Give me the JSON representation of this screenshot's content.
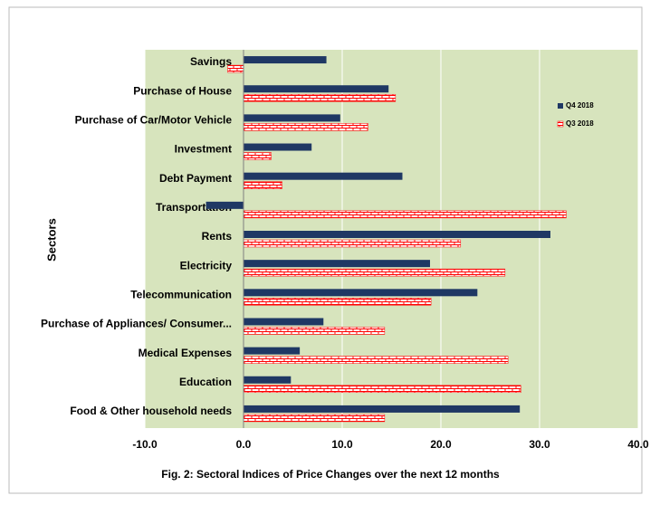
{
  "chart_data": {
    "type": "bar",
    "orientation": "horizontal",
    "title": "Fig. 2: Sectoral  Indices of Price Changes over the next 12 months",
    "y_label": "Sectors",
    "categories": [
      "Savings",
      "Purchase of House",
      "Purchase of Car/Motor Vehicle",
      "Investment",
      "Debt Payment",
      "Transportation",
      "Rents",
      "Electricity",
      "Telecommunication",
      "Purchase of Appliances/ Consumer...",
      "Medical Expenses",
      "Education",
      "Food & Other household needs"
    ],
    "series": [
      {
        "name": "Q4 2018",
        "color": "#1f3864",
        "values": [
          8.4,
          14.7,
          9.8,
          6.9,
          16.1,
          -3.8,
          31.1,
          18.9,
          23.7,
          8.1,
          5.7,
          4.8,
          28.0
        ]
      },
      {
        "name": "Q3 2018",
        "color": "#ff0000",
        "pattern": "brick",
        "values": [
          -1.6,
          15.4,
          12.6,
          2.8,
          3.9,
          32.7,
          22.0,
          26.5,
          19.0,
          14.3,
          26.8,
          28.1,
          14.3
        ]
      }
    ],
    "xlim": [
      -10,
      40
    ],
    "xticks": [
      {
        "value": -10,
        "label": "-10.0"
      },
      {
        "value": 0,
        "label": "0.0"
      },
      {
        "value": 10,
        "label": "10.0"
      },
      {
        "value": 20,
        "label": "20.0"
      },
      {
        "value": 30,
        "label": "30.0"
      },
      {
        "value": 40,
        "label": "40.0"
      }
    ],
    "grid": true,
    "legend": "right",
    "background": "#d7e4bd"
  }
}
